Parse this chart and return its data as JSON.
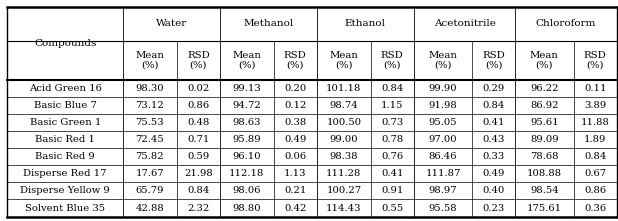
{
  "compounds": [
    "Acid Green 16",
    "Basic Blue 7",
    "Basic Green 1",
    "Basic Red 1",
    "Basic Red 9",
    "Disperse Red 17",
    "Disperse Yellow 9",
    "Solvent Blue 35"
  ],
  "solvents": [
    "Water",
    "Methanol",
    "Ethanol",
    "Acetonitrile",
    "Chloroform"
  ],
  "data": {
    "Acid Green 16": [
      98.3,
      0.02,
      99.13,
      0.2,
      101.18,
      0.84,
      99.9,
      0.29,
      96.22,
      0.11
    ],
    "Basic Blue 7": [
      73.12,
      0.86,
      94.72,
      0.12,
      98.74,
      1.15,
      91.98,
      0.84,
      86.92,
      3.89
    ],
    "Basic Green 1": [
      75.53,
      0.48,
      98.63,
      0.38,
      100.5,
      0.73,
      95.05,
      0.41,
      95.61,
      11.88
    ],
    "Basic Red 1": [
      72.45,
      0.71,
      95.89,
      0.49,
      99.0,
      0.78,
      97.0,
      0.43,
      89.09,
      1.89
    ],
    "Basic Red 9": [
      75.82,
      0.59,
      96.1,
      0.06,
      98.38,
      0.76,
      86.46,
      0.33,
      78.68,
      0.84
    ],
    "Disperse Red 17": [
      17.67,
      21.98,
      112.18,
      1.13,
      111.28,
      0.41,
      111.87,
      0.49,
      108.88,
      0.67
    ],
    "Disperse Yellow 9": [
      65.79,
      0.84,
      98.06,
      0.21,
      100.27,
      0.91,
      98.97,
      0.4,
      98.54,
      0.86
    ],
    "Solvent Blue 35": [
      42.88,
      2.32,
      98.8,
      0.42,
      114.43,
      0.55,
      95.58,
      0.23,
      175.61,
      0.36
    ]
  },
  "col_widths_raw": [
    1.55,
    0.72,
    0.58,
    0.72,
    0.58,
    0.72,
    0.58,
    0.78,
    0.58,
    0.78,
    0.58
  ],
  "background_color": "#ffffff",
  "text_color": "#000000",
  "font_size": 7.2,
  "header_font_size": 7.5
}
